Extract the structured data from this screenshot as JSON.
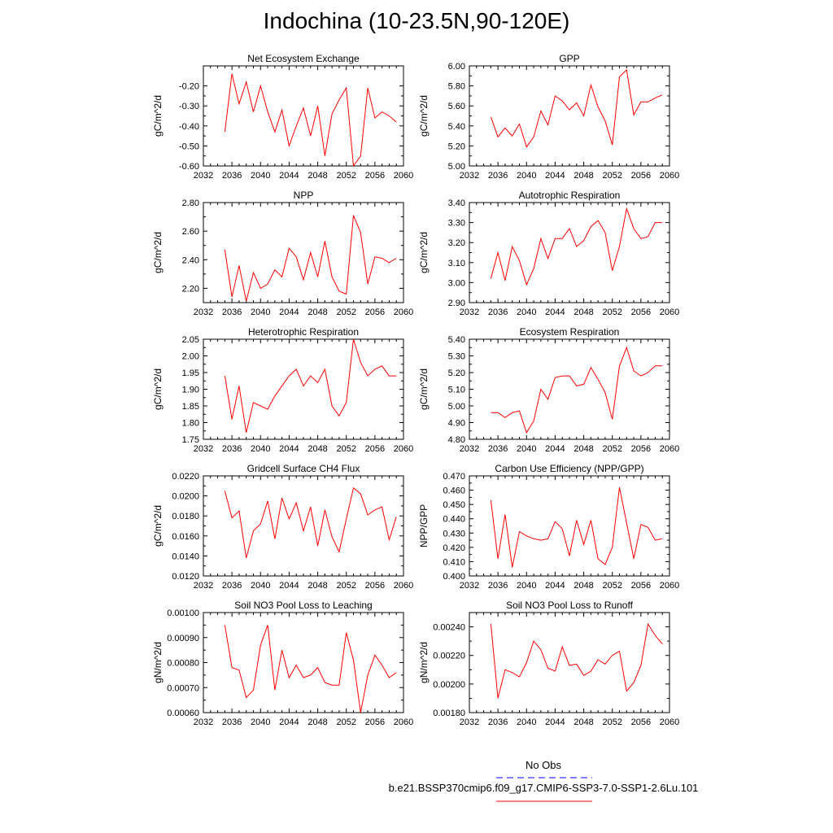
{
  "title": "Indochina (10-23.5N,90-120E)",
  "legend": {
    "entries": [
      {
        "label": "No Obs",
        "color": "#0000ff",
        "dash": true
      },
      {
        "label": "b.e21.BSSP370cmip6.f09_g17.CMIP6-SSP3-7.0-SSP1-2.6Lu.101",
        "color": "#ff0000",
        "dash": false
      }
    ]
  },
  "line_color": "#ff0000",
  "chart_data": [
    {
      "type": "line",
      "title": "Net Ecosystem Exchange",
      "ylabel": "gC/m^2/d",
      "xlim": [
        2032,
        2060
      ],
      "ylim": [
        -0.6,
        -0.1
      ],
      "yticks": [
        -0.6,
        -0.5,
        -0.4,
        -0.3,
        -0.2
      ],
      "ytick_labels": [
        "-0.60",
        "-0.50",
        "-0.40",
        "-0.30",
        "-0.20"
      ],
      "xticks": [
        2032,
        2036,
        2040,
        2044,
        2048,
        2052,
        2056,
        2060
      ],
      "x": [
        2035,
        2036,
        2037,
        2038,
        2039,
        2040,
        2041,
        2042,
        2043,
        2044,
        2045,
        2046,
        2047,
        2048,
        2049,
        2050,
        2051,
        2052,
        2053,
        2054,
        2055,
        2056,
        2057,
        2058,
        2059
      ],
      "values": [
        -0.43,
        -0.14,
        -0.29,
        -0.18,
        -0.33,
        -0.2,
        -0.33,
        -0.43,
        -0.32,
        -0.5,
        -0.4,
        -0.31,
        -0.45,
        -0.3,
        -0.55,
        -0.34,
        -0.27,
        -0.21,
        -0.6,
        -0.55,
        -0.21,
        -0.36,
        -0.33,
        -0.35,
        -0.38
      ]
    },
    {
      "type": "line",
      "title": "GPP",
      "ylabel": "gC/m^2/d",
      "xlim": [
        2032,
        2060
      ],
      "ylim": [
        5.0,
        6.0
      ],
      "yticks": [
        5.0,
        5.2,
        5.4,
        5.6,
        5.8,
        6.0
      ],
      "ytick_labels": [
        "5.00",
        "5.20",
        "5.40",
        "5.60",
        "5.80",
        "6.00"
      ],
      "xticks": [
        2032,
        2036,
        2040,
        2044,
        2048,
        2052,
        2056,
        2060
      ],
      "x": [
        2035,
        2036,
        2037,
        2038,
        2039,
        2040,
        2041,
        2042,
        2043,
        2044,
        2045,
        2046,
        2047,
        2048,
        2049,
        2050,
        2051,
        2052,
        2053,
        2054,
        2055,
        2056,
        2057,
        2058,
        2059
      ],
      "values": [
        5.49,
        5.29,
        5.38,
        5.3,
        5.42,
        5.19,
        5.29,
        5.55,
        5.41,
        5.7,
        5.65,
        5.56,
        5.63,
        5.5,
        5.81,
        5.59,
        5.45,
        5.21,
        5.89,
        5.96,
        5.51,
        5.64,
        5.64,
        5.68,
        5.71
      ]
    },
    {
      "type": "line",
      "title": "NPP",
      "ylabel": "gC/m^2/d",
      "xlim": [
        2032,
        2060
      ],
      "ylim": [
        2.1,
        2.8
      ],
      "yticks": [
        2.2,
        2.4,
        2.6,
        2.8
      ],
      "ytick_labels": [
        "2.20",
        "2.40",
        "2.60",
        "2.80"
      ],
      "xticks": [
        2032,
        2036,
        2040,
        2044,
        2048,
        2052,
        2056,
        2060
      ],
      "x": [
        2035,
        2036,
        2037,
        2038,
        2039,
        2040,
        2041,
        2042,
        2043,
        2044,
        2045,
        2046,
        2047,
        2048,
        2049,
        2050,
        2051,
        2052,
        2053,
        2054,
        2055,
        2056,
        2057,
        2058,
        2059
      ],
      "values": [
        2.47,
        2.14,
        2.36,
        2.11,
        2.31,
        2.2,
        2.23,
        2.33,
        2.28,
        2.48,
        2.42,
        2.26,
        2.45,
        2.28,
        2.53,
        2.28,
        2.18,
        2.16,
        2.71,
        2.59,
        2.23,
        2.42,
        2.41,
        2.38,
        2.41
      ]
    },
    {
      "type": "line",
      "title": "Autotrophic Respiration",
      "ylabel": "gC/m^2/d",
      "xlim": [
        2032,
        2060
      ],
      "ylim": [
        2.9,
        3.4
      ],
      "yticks": [
        2.9,
        3.0,
        3.1,
        3.2,
        3.3,
        3.4
      ],
      "ytick_labels": [
        "2.90",
        "3.00",
        "3.10",
        "3.20",
        "3.30",
        "3.40"
      ],
      "xticks": [
        2032,
        2036,
        2040,
        2044,
        2048,
        2052,
        2056,
        2060
      ],
      "x": [
        2035,
        2036,
        2037,
        2038,
        2039,
        2040,
        2041,
        2042,
        2043,
        2044,
        2045,
        2046,
        2047,
        2048,
        2049,
        2050,
        2051,
        2052,
        2053,
        2054,
        2055,
        2056,
        2057,
        2058,
        2059
      ],
      "values": [
        3.02,
        3.15,
        3.01,
        3.18,
        3.11,
        2.99,
        3.07,
        3.22,
        3.12,
        3.22,
        3.22,
        3.27,
        3.18,
        3.21,
        3.28,
        3.31,
        3.25,
        3.06,
        3.18,
        3.37,
        3.27,
        3.22,
        3.23,
        3.3,
        3.3
      ]
    },
    {
      "type": "line",
      "title": "Heterotrophic Respiration",
      "ylabel": "gC/m^2/d",
      "xlim": [
        2032,
        2060
      ],
      "ylim": [
        1.75,
        2.05
      ],
      "yticks": [
        1.75,
        1.8,
        1.85,
        1.9,
        1.95,
        2.0,
        2.05
      ],
      "ytick_labels": [
        "1.75",
        "1.80",
        "1.85",
        "1.90",
        "1.95",
        "2.00",
        "2.05"
      ],
      "xticks": [
        2032,
        2036,
        2040,
        2044,
        2048,
        2052,
        2056,
        2060
      ],
      "x": [
        2035,
        2036,
        2037,
        2038,
        2039,
        2040,
        2041,
        2042,
        2043,
        2044,
        2045,
        2046,
        2047,
        2048,
        2049,
        2050,
        2051,
        2052,
        2053,
        2054,
        2055,
        2056,
        2057,
        2058,
        2059
      ],
      "values": [
        1.94,
        1.81,
        1.91,
        1.77,
        1.86,
        1.85,
        1.84,
        1.88,
        1.91,
        1.94,
        1.96,
        1.91,
        1.94,
        1.92,
        1.96,
        1.85,
        1.82,
        1.86,
        2.05,
        1.98,
        1.94,
        1.96,
        1.97,
        1.94,
        1.94
      ]
    },
    {
      "type": "line",
      "title": "Ecosystem Respiration",
      "ylabel": "gC/m^2/d",
      "xlim": [
        2032,
        2060
      ],
      "ylim": [
        4.8,
        5.4
      ],
      "yticks": [
        4.8,
        4.9,
        5.0,
        5.1,
        5.2,
        5.3,
        5.4
      ],
      "ytick_labels": [
        "4.80",
        "4.90",
        "5.00",
        "5.10",
        "5.20",
        "5.30",
        "5.40"
      ],
      "xticks": [
        2032,
        2036,
        2040,
        2044,
        2048,
        2052,
        2056,
        2060
      ],
      "x": [
        2035,
        2036,
        2037,
        2038,
        2039,
        2040,
        2041,
        2042,
        2043,
        2044,
        2045,
        2046,
        2047,
        2048,
        2049,
        2050,
        2051,
        2052,
        2053,
        2054,
        2055,
        2056,
        2057,
        2058,
        2059
      ],
      "values": [
        4.96,
        4.96,
        4.93,
        4.96,
        4.97,
        4.84,
        4.91,
        5.1,
        5.04,
        5.17,
        5.18,
        5.18,
        5.12,
        5.13,
        5.23,
        5.16,
        5.08,
        4.92,
        5.24,
        5.35,
        5.21,
        5.18,
        5.2,
        5.24,
        5.24
      ]
    },
    {
      "type": "line",
      "title": "Gridcell Surface CH4 Flux",
      "ylabel": "gC/m^2/d",
      "xlim": [
        2032,
        2060
      ],
      "ylim": [
        0.012,
        0.022
      ],
      "yticks": [
        0.012,
        0.014,
        0.016,
        0.018,
        0.02,
        0.022
      ],
      "ytick_labels": [
        "0.0120",
        "0.0140",
        "0.0160",
        "0.0180",
        "0.0200",
        "0.0220"
      ],
      "xticks": [
        2032,
        2036,
        2040,
        2044,
        2048,
        2052,
        2056,
        2060
      ],
      "x": [
        2035,
        2036,
        2037,
        2038,
        2039,
        2040,
        2041,
        2042,
        2043,
        2044,
        2045,
        2046,
        2047,
        2048,
        2049,
        2050,
        2051,
        2052,
        2053,
        2054,
        2055,
        2056,
        2057,
        2058,
        2059
      ],
      "values": [
        0.0205,
        0.0178,
        0.0185,
        0.0138,
        0.0165,
        0.0172,
        0.0195,
        0.0157,
        0.0198,
        0.0177,
        0.0193,
        0.0165,
        0.0189,
        0.015,
        0.0186,
        0.0159,
        0.0144,
        0.0177,
        0.0208,
        0.0202,
        0.0181,
        0.0186,
        0.0189,
        0.0156,
        0.0179
      ]
    },
    {
      "type": "line",
      "title": "Carbon Use Efficiency (NPP/GPP)",
      "ylabel": "NPP/GPP",
      "xlim": [
        2032,
        2060
      ],
      "ylim": [
        0.4,
        0.47
      ],
      "yticks": [
        0.4,
        0.41,
        0.42,
        0.43,
        0.44,
        0.45,
        0.46,
        0.47
      ],
      "ytick_labels": [
        "0.400",
        "0.410",
        "0.420",
        "0.430",
        "0.440",
        "0.450",
        "0.460",
        "0.470"
      ],
      "xticks": [
        2032,
        2036,
        2040,
        2044,
        2048,
        2052,
        2056,
        2060
      ],
      "x": [
        2035,
        2036,
        2037,
        2038,
        2039,
        2040,
        2041,
        2042,
        2043,
        2044,
        2045,
        2046,
        2047,
        2048,
        2049,
        2050,
        2051,
        2052,
        2053,
        2054,
        2055,
        2056,
        2057,
        2058,
        2059
      ],
      "values": [
        0.453,
        0.412,
        0.443,
        0.406,
        0.431,
        0.428,
        0.426,
        0.425,
        0.426,
        0.438,
        0.433,
        0.414,
        0.439,
        0.422,
        0.439,
        0.412,
        0.408,
        0.42,
        0.462,
        0.437,
        0.412,
        0.436,
        0.434,
        0.425,
        0.426
      ]
    },
    {
      "type": "line",
      "title": "Soil NO3 Pool Loss to Leaching",
      "ylabel": "gN/m^2/d",
      "xlim": [
        2032,
        2060
      ],
      "ylim": [
        0.0006,
        0.001
      ],
      "yticks": [
        0.0006,
        0.0007,
        0.0008,
        0.0009,
        0.001
      ],
      "ytick_labels": [
        "0.00060",
        "0.00070",
        "0.00080",
        "0.00090",
        "0.00100"
      ],
      "xticks": [
        2032,
        2036,
        2040,
        2044,
        2048,
        2052,
        2056,
        2060
      ],
      "x": [
        2035,
        2036,
        2037,
        2038,
        2039,
        2040,
        2041,
        2042,
        2043,
        2044,
        2045,
        2046,
        2047,
        2048,
        2049,
        2050,
        2051,
        2052,
        2053,
        2054,
        2055,
        2056,
        2057,
        2058,
        2059
      ],
      "values": [
        0.00095,
        0.00078,
        0.00077,
        0.00066,
        0.00069,
        0.00087,
        0.00095,
        0.00069,
        0.00085,
        0.00074,
        0.00079,
        0.00074,
        0.00075,
        0.00078,
        0.00072,
        0.00071,
        0.00071,
        0.00092,
        0.00081,
        0.0006,
        0.00075,
        0.00083,
        0.00079,
        0.00074,
        0.00076
      ]
    },
    {
      "type": "line",
      "title": "Soil NO3 Pool Loss to Runoff",
      "ylabel": "gN/m^2/d",
      "xlim": [
        2032,
        2060
      ],
      "ylim": [
        0.0018,
        0.0025
      ],
      "yticks": [
        0.0018,
        0.002,
        0.0022,
        0.0024
      ],
      "ytick_labels": [
        "0.00180",
        "0.00200",
        "0.00220",
        "0.00240"
      ],
      "xticks": [
        2032,
        2036,
        2040,
        2044,
        2048,
        2052,
        2056,
        2060
      ],
      "x": [
        2035,
        2036,
        2037,
        2038,
        2039,
        2040,
        2041,
        2042,
        2043,
        2044,
        2045,
        2046,
        2047,
        2048,
        2049,
        2050,
        2051,
        2052,
        2053,
        2054,
        2055,
        2056,
        2057,
        2058,
        2059
      ],
      "values": [
        0.00242,
        0.0019,
        0.0021,
        0.00208,
        0.00205,
        0.00215,
        0.0023,
        0.00224,
        0.00211,
        0.00209,
        0.00226,
        0.00213,
        0.00214,
        0.00206,
        0.00209,
        0.00217,
        0.00214,
        0.0022,
        0.00223,
        0.00195,
        0.00201,
        0.00213,
        0.00242,
        0.00234,
        0.00228
      ]
    }
  ]
}
